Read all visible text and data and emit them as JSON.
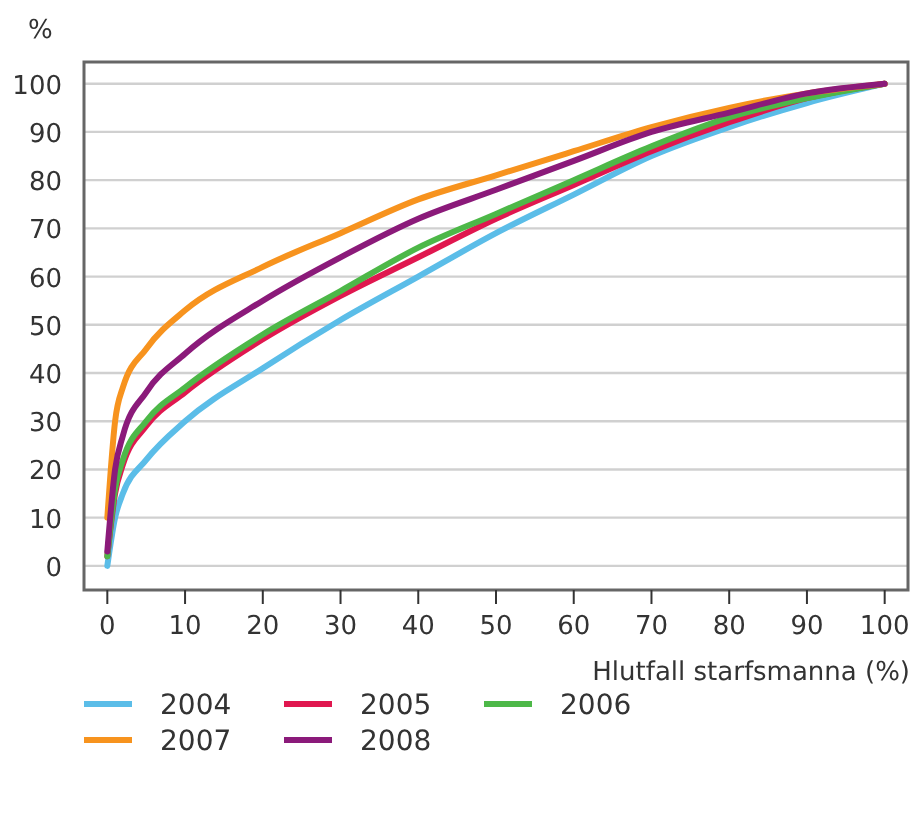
{
  "chart_data": {
    "type": "line",
    "ylabel": "%",
    "xlabel": "Hlutfall starfsmanna (%)",
    "x": [
      0,
      1,
      2,
      5,
      10,
      20,
      30,
      40,
      50,
      60,
      70,
      80,
      90,
      100
    ],
    "series": [
      {
        "name": "2004",
        "color": "#5bbde8",
        "values": [
          0,
          10,
          15,
          22,
          30,
          41,
          51,
          60,
          69,
          77,
          85,
          91,
          96,
          100
        ]
      },
      {
        "name": "2005",
        "color": "#e0174f",
        "values": [
          2,
          15,
          21,
          29,
          36,
          47,
          56,
          64,
          72,
          79,
          86,
          92,
          97,
          100
        ]
      },
      {
        "name": "2006",
        "color": "#4db848",
        "values": [
          2,
          16,
          22,
          30,
          37,
          48,
          57,
          66,
          73,
          80,
          87,
          93,
          97,
          100
        ]
      },
      {
        "name": "2007",
        "color": "#f7931e",
        "values": [
          10,
          30,
          37,
          45,
          53,
          62,
          69,
          76,
          81,
          86,
          91,
          95,
          98,
          100
        ]
      },
      {
        "name": "2008",
        "color": "#8b1a7a",
        "values": [
          3,
          20,
          27,
          36,
          44,
          55,
          64,
          72,
          78,
          84,
          90,
          94,
          98,
          100
        ]
      }
    ],
    "xlim": [
      -3,
      103
    ],
    "ylim": [
      -5,
      104.5
    ],
    "xticks": [
      0,
      10,
      20,
      30,
      40,
      50,
      60,
      70,
      80,
      90,
      100
    ],
    "yticks": [
      0,
      10,
      20,
      30,
      40,
      50,
      60,
      70,
      80,
      90,
      100
    ],
    "grid": "y",
    "legend": "bottom",
    "marker": "none",
    "line_style": "solid"
  }
}
